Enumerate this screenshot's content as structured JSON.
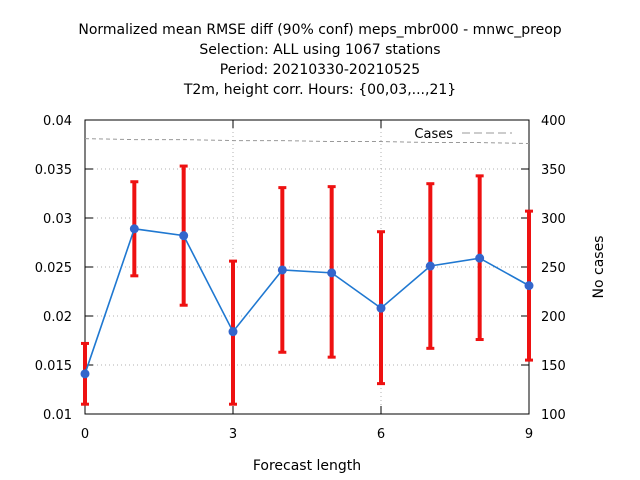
{
  "chart_data": {
    "type": "line",
    "title_lines": [
      "Normalized mean RMSE diff (90% conf) meps_mbr000 - mnwc_preop",
      "Selection: ALL using  1067 stations",
      "Period: 20210330-20210525",
      "T2m, height corr.   Hours: {00,03,...,21}"
    ],
    "xlabel": "Forecast length",
    "ylabel_right": "No cases",
    "x_ticks": [
      "0",
      "3",
      "6",
      "9"
    ],
    "y_ticks": [
      "0.01",
      "0.015",
      "0.02",
      "0.025",
      "0.03",
      "0.035",
      "0.04"
    ],
    "y2_ticks": [
      "100",
      "150",
      "200",
      "250",
      "300",
      "350",
      "400"
    ],
    "xlim": [
      0,
      9
    ],
    "ylim": [
      0.01,
      0.04
    ],
    "y2lim": [
      100,
      400
    ],
    "grid": true,
    "legend_position": "top-right",
    "series": [
      {
        "kind": "line-errorbar",
        "color": "#1f78d1",
        "marker_color": "#3366cc",
        "errorbar_color": "#ee1111",
        "x": [
          0,
          1,
          2,
          3,
          4,
          5,
          6,
          7,
          8,
          9
        ],
        "y": [
          0.0141,
          0.0289,
          0.0282,
          0.0184,
          0.0247,
          0.0244,
          0.0208,
          0.0251,
          0.0259,
          0.0231
        ],
        "ylow": [
          0.011,
          0.0241,
          0.0211,
          0.011,
          0.0163,
          0.0158,
          0.0131,
          0.0167,
          0.0176,
          0.0155
        ],
        "yhigh": [
          0.0172,
          0.0337,
          0.0353,
          0.0256,
          0.0331,
          0.0332,
          0.0286,
          0.0335,
          0.0343,
          0.0307
        ]
      },
      {
        "name": "Cases",
        "kind": "dashed",
        "axis": "right",
        "color": "#999999",
        "x": [
          0,
          1,
          2,
          3,
          4,
          5,
          6,
          7,
          8,
          9
        ],
        "y": [
          381,
          380,
          380,
          379,
          379,
          378,
          378,
          377,
          377,
          376
        ]
      }
    ]
  }
}
